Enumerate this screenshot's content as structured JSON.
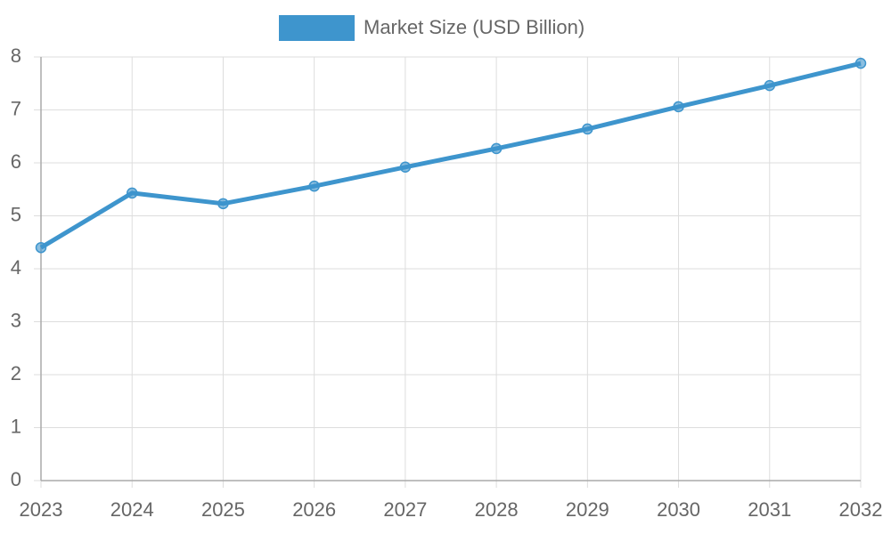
{
  "chart_data": {
    "type": "line",
    "categories": [
      "2023",
      "2024",
      "2025",
      "2026",
      "2027",
      "2028",
      "2029",
      "2030",
      "2031",
      "2032"
    ],
    "series": [
      {
        "name": "Market Size (USD Billion)",
        "color": "#3e95cd",
        "values": [
          4.4,
          5.43,
          5.23,
          5.56,
          5.92,
          6.27,
          6.64,
          7.06,
          7.46,
          7.88
        ]
      }
    ],
    "ylim": [
      0,
      8
    ],
    "yticks": [
      0,
      1,
      2,
      3,
      4,
      5,
      6,
      7,
      8
    ],
    "grid": true,
    "legend": "top"
  }
}
